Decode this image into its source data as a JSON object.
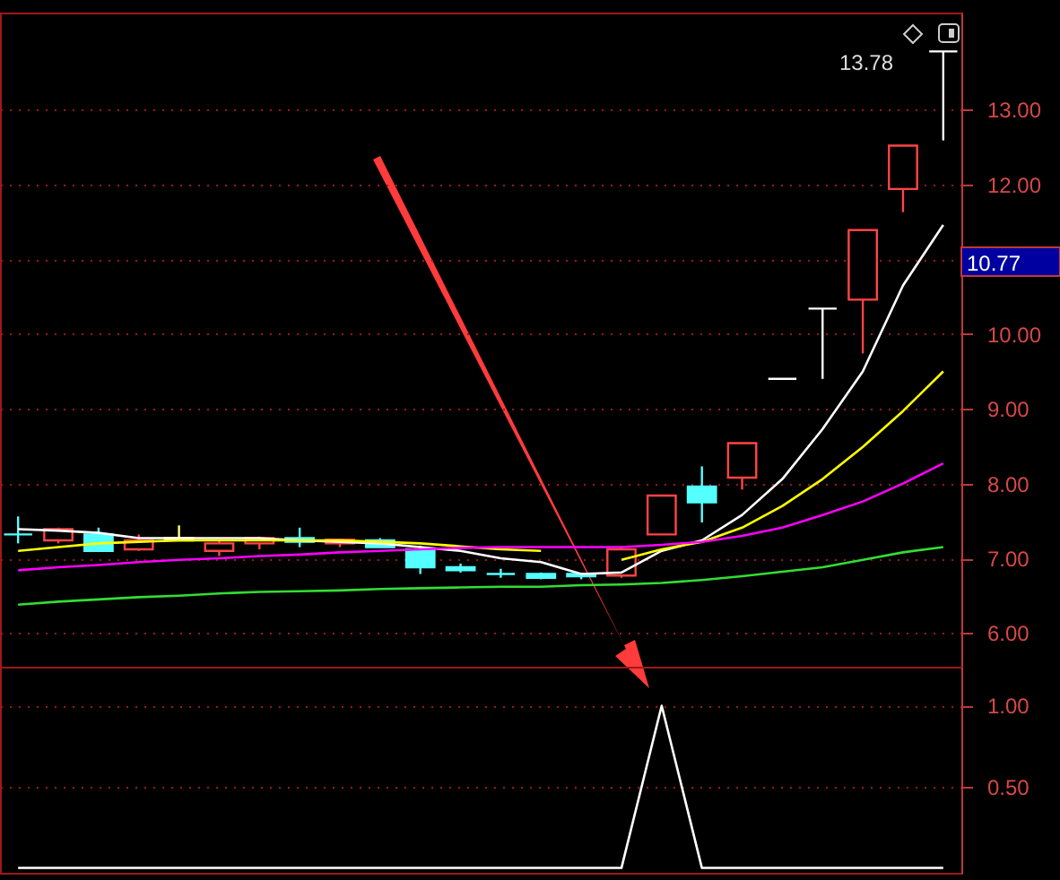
{
  "chart_data": [
    {
      "type": "candlestick",
      "categories": [
        null,
        null,
        null,
        null,
        null,
        null,
        null,
        null,
        null,
        null,
        null,
        null,
        null,
        null,
        null,
        null,
        null,
        null,
        null,
        null,
        null,
        null,
        null,
        null
      ],
      "ohlc": [
        [
          7.32,
          7.56,
          7.2,
          7.32
        ],
        [
          7.24,
          7.41,
          7.2,
          7.39
        ],
        [
          7.32,
          7.41,
          7.1,
          7.1
        ],
        [
          7.12,
          7.32,
          7.1,
          7.24
        ],
        [
          7.24,
          7.44,
          7.24,
          7.27
        ],
        [
          7.1,
          7.24,
          7.03,
          7.2
        ],
        [
          7.2,
          7.29,
          7.12,
          7.27
        ],
        [
          7.27,
          7.41,
          7.15,
          7.22
        ],
        [
          7.2,
          7.26,
          7.15,
          7.25
        ],
        [
          7.24,
          7.27,
          7.15,
          7.15
        ],
        [
          7.12,
          7.17,
          6.79,
          6.88
        ],
        [
          6.88,
          6.93,
          6.81,
          6.84
        ],
        [
          6.79,
          6.86,
          6.74,
          6.79
        ],
        [
          6.79,
          6.81,
          6.72,
          6.74
        ],
        [
          6.79,
          6.81,
          6.72,
          6.76
        ],
        [
          6.77,
          7.15,
          6.74,
          7.12
        ],
        [
          7.32,
          7.84,
          7.32,
          7.84
        ],
        [
          7.96,
          8.23,
          7.48,
          7.75
        ],
        [
          8.08,
          8.54,
          7.92,
          8.54
        ],
        [
          9.4,
          9.4,
          9.4,
          9.4
        ],
        [
          10.34,
          10.34,
          9.4,
          10.34
        ],
        [
          10.46,
          11.39,
          9.74,
          11.39
        ],
        [
          11.94,
          12.52,
          11.63,
          12.52
        ],
        [
          13.78,
          13.78,
          12.59,
          13.78
        ]
      ],
      "colors": [
        "#54ffff",
        "#ff4444",
        "#54ffff",
        "#ff4444",
        "#ffff80",
        "#ff4444",
        "#ff4444",
        "#54ffff",
        "#ff4444",
        "#54ffff",
        "#54ffff",
        "#54ffff",
        "#54ffff",
        "#54ffff",
        "#54ffff",
        "#ff4444",
        "#ff4444",
        "#54ffff",
        "#ff4444",
        "#ffffff",
        "#ffffff",
        "#ff4444",
        "#ff4444",
        "#ffffff"
      ],
      "series": [
        {
          "type": "line",
          "color": "#ffffff",
          "values": [
            7.39,
            7.37,
            7.34,
            7.27,
            7.27,
            7.27,
            7.27,
            7.24,
            7.22,
            7.2,
            7.15,
            7.1,
            7.0,
            6.95,
            6.79,
            6.81,
            7.1,
            7.24,
            7.58,
            8.06,
            8.73,
            9.5,
            10.65,
            11.46
          ]
        },
        {
          "type": "line",
          "color": "#ffff00",
          "values": [
            7.1,
            7.15,
            7.2,
            7.22,
            7.24,
            7.24,
            7.24,
            7.24,
            7.24,
            7.22,
            7.2,
            7.16,
            7.12,
            7.1,
            null,
            6.98,
            7.12,
            7.22,
            7.41,
            7.7,
            8.06,
            8.49,
            8.97,
            9.5
          ]
        },
        {
          "type": "line",
          "color": "#ff00ff",
          "values": [
            6.84,
            6.88,
            6.91,
            6.95,
            6.98,
            7.0,
            7.03,
            7.05,
            7.08,
            7.1,
            7.12,
            7.14,
            7.15,
            7.15,
            7.15,
            7.15,
            7.18,
            7.22,
            7.3,
            7.41,
            7.58,
            7.76,
            8.0,
            8.27
          ]
        },
        {
          "type": "line",
          "color": "#33dd33",
          "values": [
            6.38,
            6.42,
            6.45,
            6.48,
            6.5,
            6.53,
            6.55,
            6.56,
            6.57,
            6.59,
            6.6,
            6.61,
            6.62,
            6.62,
            6.64,
            6.65,
            6.67,
            6.71,
            6.76,
            6.82,
            6.88,
            6.98,
            7.08,
            7.15
          ]
        }
      ],
      "ylim": [
        5.55,
        14.3
      ],
      "yticks": [
        {
          "value": 6,
          "label": "6.00"
        },
        {
          "value": 7,
          "label": "7.00"
        },
        {
          "value": 8,
          "label": "8.00"
        },
        {
          "value": 9,
          "label": "9.00"
        },
        {
          "value": 10,
          "label": "10.00"
        },
        {
          "value": 11,
          "label": null
        },
        {
          "value": 12,
          "label": "12.00"
        },
        {
          "value": 13,
          "label": "13.00"
        }
      ],
      "grid": "y",
      "annotations": [
        "13.78",
        "10.77"
      ]
    },
    {
      "type": "line",
      "categories": [
        null,
        null,
        null,
        null,
        null,
        null,
        null,
        null,
        null,
        null,
        null,
        null,
        null,
        null,
        null,
        null,
        null,
        null,
        null,
        null,
        null,
        null,
        null,
        null
      ],
      "series": [
        {
          "color": "#ffffff",
          "values": [
            0,
            0,
            0,
            0,
            0,
            0,
            0,
            0,
            0,
            0,
            0,
            0,
            0,
            0,
            0,
            0,
            1,
            0,
            0,
            0,
            0,
            0,
            0,
            0
          ]
        }
      ],
      "ylim": [
        -0.03,
        1.24
      ],
      "yticks": [
        {
          "value": 0.5,
          "label": "0.50"
        },
        {
          "value": 1,
          "label": "1.00"
        }
      ],
      "grid": "y"
    }
  ]
}
